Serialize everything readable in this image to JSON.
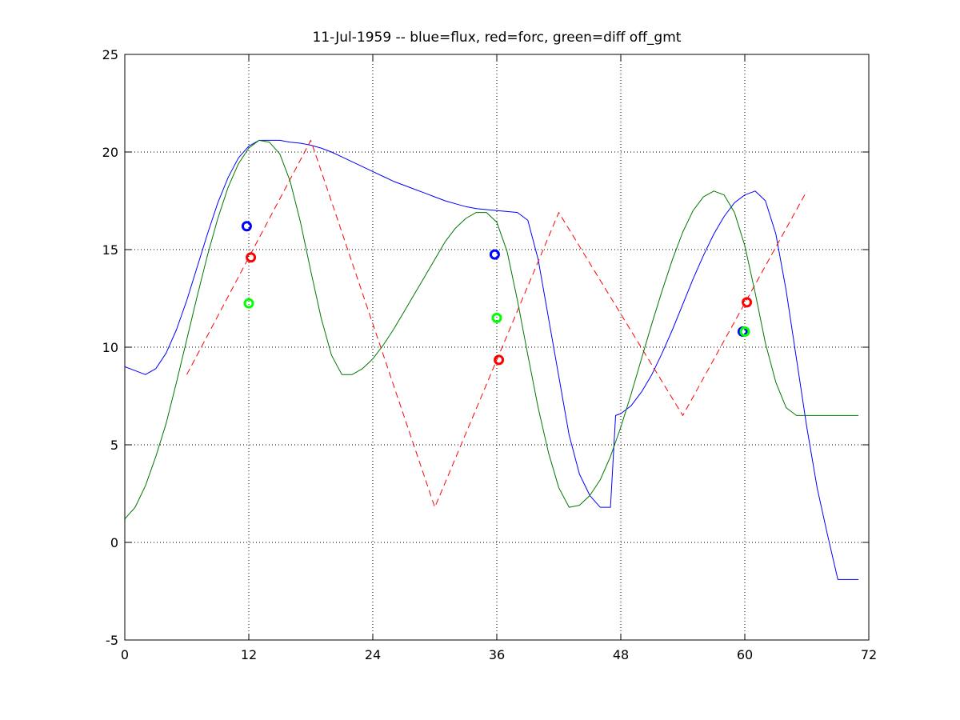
{
  "chart_data": {
    "type": "line",
    "title": "11-Jul-1959 -- blue=flux, red=forc, green=diff off_gmt",
    "xlabel": "",
    "ylabel": "",
    "xlim": [
      0,
      72
    ],
    "ylim": [
      -5,
      25
    ],
    "xticks": [
      0,
      12,
      24,
      36,
      48,
      60,
      72
    ],
    "yticks": [
      -5,
      0,
      5,
      10,
      15,
      20,
      25
    ],
    "grid": true,
    "series": [
      {
        "color": "#0000ff",
        "style": "solid",
        "x": [
          0,
          1,
          2,
          3,
          4,
          5,
          6,
          7,
          8,
          9,
          10,
          11,
          12,
          13,
          14,
          15,
          16,
          17,
          18,
          19,
          20,
          21,
          22,
          23,
          24,
          25,
          26,
          27,
          28,
          29,
          30,
          31,
          32,
          33,
          34,
          35,
          36,
          37,
          38,
          39,
          40,
          41,
          42,
          43,
          44,
          45,
          46,
          47,
          47.5,
          48,
          49,
          50,
          51,
          52,
          53,
          54,
          55,
          56,
          57,
          58,
          59,
          60,
          61,
          62,
          63,
          64,
          65,
          66,
          67,
          68,
          69,
          70,
          71
        ],
        "y": [
          9.0,
          8.8,
          8.6,
          8.9,
          9.7,
          10.9,
          12.4,
          14.1,
          15.8,
          17.4,
          18.7,
          19.7,
          20.3,
          20.6,
          20.6,
          20.6,
          20.5,
          20.45,
          20.35,
          20.2,
          20.0,
          19.75,
          19.5,
          19.25,
          19.0,
          18.75,
          18.5,
          18.3,
          18.1,
          17.9,
          17.7,
          17.5,
          17.35,
          17.2,
          17.1,
          17.05,
          17.0,
          16.95,
          16.9,
          16.5,
          14.5,
          11.5,
          8.5,
          5.5,
          3.5,
          2.4,
          1.8,
          1.8,
          6.5,
          6.6,
          7.0,
          7.7,
          8.6,
          9.7,
          10.9,
          12.2,
          13.5,
          14.7,
          15.8,
          16.7,
          17.4,
          17.8,
          18.0,
          17.5,
          15.8,
          12.9,
          9.4,
          5.9,
          2.8,
          0.4,
          -1.9,
          -1.9,
          -1.9
        ]
      },
      {
        "color": "#ff0000",
        "style": "dashed",
        "x": [
          6,
          18,
          30,
          42,
          54,
          66
        ],
        "y": [
          8.6,
          20.6,
          1.8,
          16.9,
          6.5,
          18.0
        ]
      },
      {
        "color": "#007700",
        "style": "solid",
        "x": [
          0,
          1,
          2,
          3,
          4,
          5,
          6,
          7,
          8,
          9,
          10,
          11,
          12,
          13,
          14,
          15,
          16,
          17,
          18,
          19,
          20,
          21,
          22,
          23,
          24,
          25,
          26,
          27,
          28,
          29,
          30,
          31,
          32,
          33,
          34,
          35,
          36,
          37,
          38,
          39,
          40,
          41,
          42,
          43,
          44,
          45,
          46,
          47,
          48,
          49,
          50,
          51,
          52,
          53,
          54,
          55,
          56,
          57,
          58,
          59,
          60,
          61,
          62,
          63,
          64,
          65,
          66,
          67,
          68,
          69,
          70,
          71
        ],
        "y": [
          1.2,
          1.8,
          2.9,
          4.4,
          6.1,
          8.2,
          10.4,
          12.6,
          14.7,
          16.6,
          18.2,
          19.4,
          20.2,
          20.6,
          20.5,
          19.9,
          18.5,
          16.4,
          13.9,
          11.5,
          9.6,
          8.6,
          8.6,
          8.9,
          9.4,
          10.1,
          10.9,
          11.8,
          12.7,
          13.6,
          14.5,
          15.4,
          16.1,
          16.6,
          16.9,
          16.9,
          16.4,
          14.9,
          12.4,
          9.6,
          6.9,
          4.6,
          2.8,
          1.8,
          1.9,
          2.4,
          3.2,
          4.4,
          5.9,
          7.6,
          9.4,
          11.2,
          12.9,
          14.5,
          15.9,
          17.0,
          17.7,
          18.0,
          17.8,
          16.9,
          15.2,
          12.8,
          10.2,
          8.2,
          6.9,
          6.5,
          6.5,
          6.5,
          6.5,
          6.5,
          6.5,
          6.5
        ],
        "x_trim": 71.5
      }
    ],
    "markers": [
      {
        "color": "#0000ff",
        "x": 11.8,
        "y": 16.2
      },
      {
        "color": "#ff0000",
        "x": 12.2,
        "y": 14.6
      },
      {
        "color": "#00ff00",
        "x": 12.0,
        "y": 12.25
      },
      {
        "color": "#0000ff",
        "x": 35.8,
        "y": 14.75
      },
      {
        "color": "#00ff00",
        "x": 36.0,
        "y": 11.5
      },
      {
        "color": "#ff0000",
        "x": 36.2,
        "y": 9.35
      },
      {
        "color": "#ff0000",
        "x": 60.2,
        "y": 12.3
      },
      {
        "color": "#0000ff",
        "x": 59.8,
        "y": 10.8
      },
      {
        "color": "#00ff00",
        "x": 60.0,
        "y": 10.8
      }
    ]
  }
}
